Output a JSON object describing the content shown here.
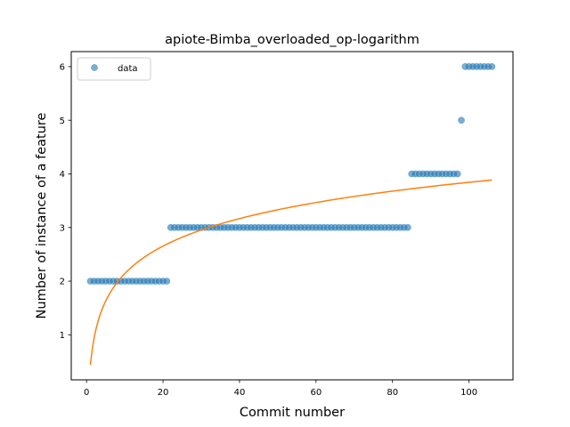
{
  "chart_data": {
    "type": "scatter",
    "title": "apiote-Bimba_overloaded_op-logarithm",
    "xlabel": "Commit number",
    "ylabel": "Number of instance of a feature",
    "xlim": [
      -4,
      111.5
    ],
    "ylim": [
      0.16,
      6.28
    ],
    "xticks": [
      0,
      20,
      40,
      60,
      80,
      100
    ],
    "yticks": [
      1,
      2,
      3,
      4,
      5,
      6
    ],
    "grid": false,
    "legend": {
      "position": "top-left",
      "entries": [
        "data"
      ]
    },
    "series": [
      {
        "name": "data",
        "kind": "points",
        "color": "#1f77b4",
        "segments": [
          {
            "x_from": 1,
            "x_to": 21,
            "y": 2
          },
          {
            "x_from": 22,
            "x_to": 84,
            "y": 3
          },
          {
            "x_from": 85,
            "x_to": 97,
            "y": 4
          },
          {
            "x_from": 98,
            "x_to": 98,
            "y": 5
          },
          {
            "x_from": 99,
            "x_to": 106,
            "y": 6
          }
        ]
      },
      {
        "kind": "line",
        "color": "#ff7f0e",
        "function": "a + b*ln(x)",
        "a": 0.44,
        "b": 0.739,
        "x_from": 1,
        "x_to": 106
      }
    ]
  }
}
